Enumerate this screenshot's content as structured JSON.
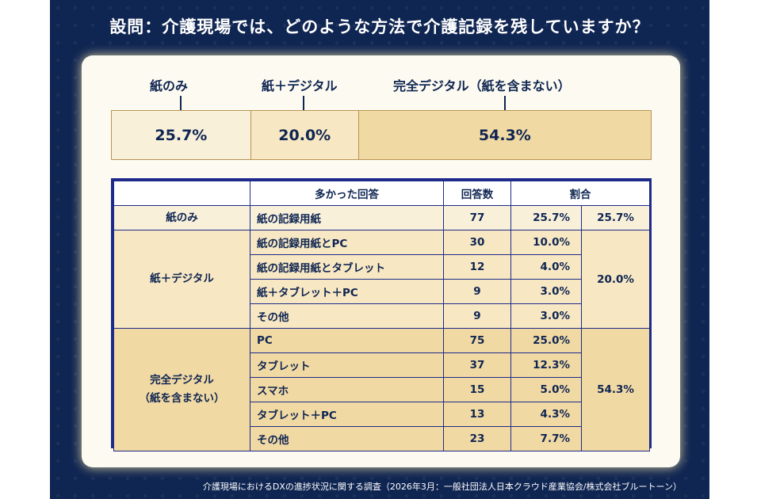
{
  "title": "設問：介護現場では、どのような方法で介護記録を残していますか？",
  "source": "介護現場におけるDXの進捗状況に関する調査（2026年3月：一般社団法人日本クラウド産業協会/株式会社ブルートーン）",
  "colors": {
    "background": "#0f2552",
    "card": "#fdfbf1",
    "border": "#1d2a8a",
    "paper_only": "#f9f0da",
    "paper_digital": "#f7e7c2",
    "full_digital": "#f1d9a3",
    "text": "#0f2552"
  },
  "chart_data": [
    {
      "type": "bar",
      "orientation": "horizontal-stacked",
      "categories": [
        "紙のみ",
        "紙＋デジタル",
        "完全デジタル（紙を含まない）"
      ],
      "values": [
        25.7,
        20.0,
        54.3
      ],
      "labels": [
        "25.7%",
        "20.0%",
        "54.3%"
      ],
      "ylim": [
        0,
        100
      ]
    },
    {
      "type": "table",
      "headers": [
        "",
        "多かった回答",
        "回答数",
        "割合"
      ],
      "groups": [
        {
          "category": "紙のみ",
          "total": "25.7%",
          "rows": [
            {
              "answer": "紙の記録用紙",
              "count": "77",
              "pct": "25.7%"
            }
          ]
        },
        {
          "category": "紙＋デジタル",
          "total": "20.0%",
          "rows": [
            {
              "answer": "紙の記録用紙とPC",
              "count": "30",
              "pct": "10.0%"
            },
            {
              "answer": "紙の記録用紙とタブレット",
              "count": "12",
              "pct": "4.0%"
            },
            {
              "answer": "紙＋タブレット＋PC",
              "count": "9",
              "pct": "3.0%"
            },
            {
              "answer": "その他",
              "count": "9",
              "pct": "3.0%"
            }
          ]
        },
        {
          "category_lines": [
            "完全デジタル",
            "（紙を含まない）"
          ],
          "total": "54.3%",
          "rows": [
            {
              "answer": "PC",
              "count": "75",
              "pct": "25.0%"
            },
            {
              "answer": "タブレット",
              "count": "37",
              "pct": "12.3%"
            },
            {
              "answer": "スマホ",
              "count": "15",
              "pct": "5.0%"
            },
            {
              "answer": "タブレット＋PC",
              "count": "13",
              "pct": "4.3%"
            },
            {
              "answer": "その他",
              "count": "23",
              "pct": "7.7%"
            }
          ]
        }
      ]
    }
  ]
}
